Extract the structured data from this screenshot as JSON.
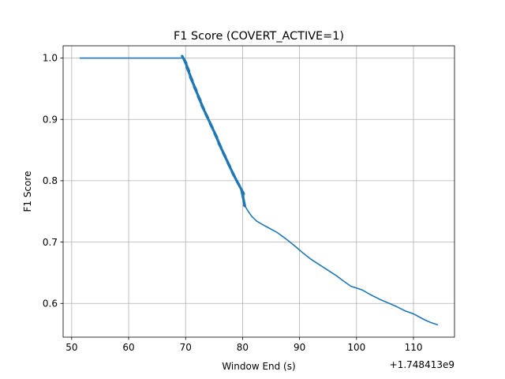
{
  "chart_data": {
    "type": "line",
    "title": "F1 Score (COVERT_ACTIVE=1)",
    "xlabel": "Window End (s)",
    "ylabel": "F1 Score",
    "x_offset_label": "+1.748413e9",
    "xlim": [
      48.5,
      117.2
    ],
    "ylim": [
      0.545,
      1.02
    ],
    "xticks": [
      50,
      60,
      70,
      80,
      90,
      100,
      110
    ],
    "yticks": [
      0.6,
      0.7,
      0.8,
      0.9,
      1.0
    ],
    "xtick_labels": [
      "50",
      "60",
      "70",
      "80",
      "90",
      "100",
      "110"
    ],
    "ytick_labels": [
      "0.6",
      "0.7",
      "0.8",
      "0.9",
      "1.0"
    ],
    "grid": true,
    "legend": "none",
    "series": [
      {
        "color": "#1f77b4",
        "x": [
          51.4,
          55.0,
          60.0,
          65.0,
          69.6,
          69.9,
          70.4,
          71.0,
          71.7,
          72.4,
          73.0,
          73.7,
          74.5,
          75.3,
          76.0,
          76.8,
          77.6,
          78.4,
          79.2,
          80.0,
          80.2,
          81.0,
          81.6,
          82.5,
          84.0,
          86.0,
          87.5,
          89.0,
          90.5,
          92.0,
          93.5,
          95.0,
          96.5,
          97.5,
          99.0,
          101.0,
          102.5,
          104.0,
          105.5,
          107.0,
          108.5,
          110.0,
          111.0,
          112.0,
          113.0,
          114.3
        ],
        "y": [
          1.0,
          1.0,
          1.0,
          1.0,
          1.0,
          0.995,
          0.982,
          0.966,
          0.95,
          0.934,
          0.92,
          0.906,
          0.89,
          0.874,
          0.858,
          0.842,
          0.826,
          0.81,
          0.796,
          0.782,
          0.762,
          0.75,
          0.742,
          0.734,
          0.726,
          0.716,
          0.706,
          0.695,
          0.683,
          0.672,
          0.663,
          0.654,
          0.645,
          0.638,
          0.628,
          0.622,
          0.614,
          0.607,
          0.601,
          0.595,
          0.588,
          0.583,
          0.578,
          0.573,
          0.569,
          0.565
        ]
      }
    ]
  }
}
